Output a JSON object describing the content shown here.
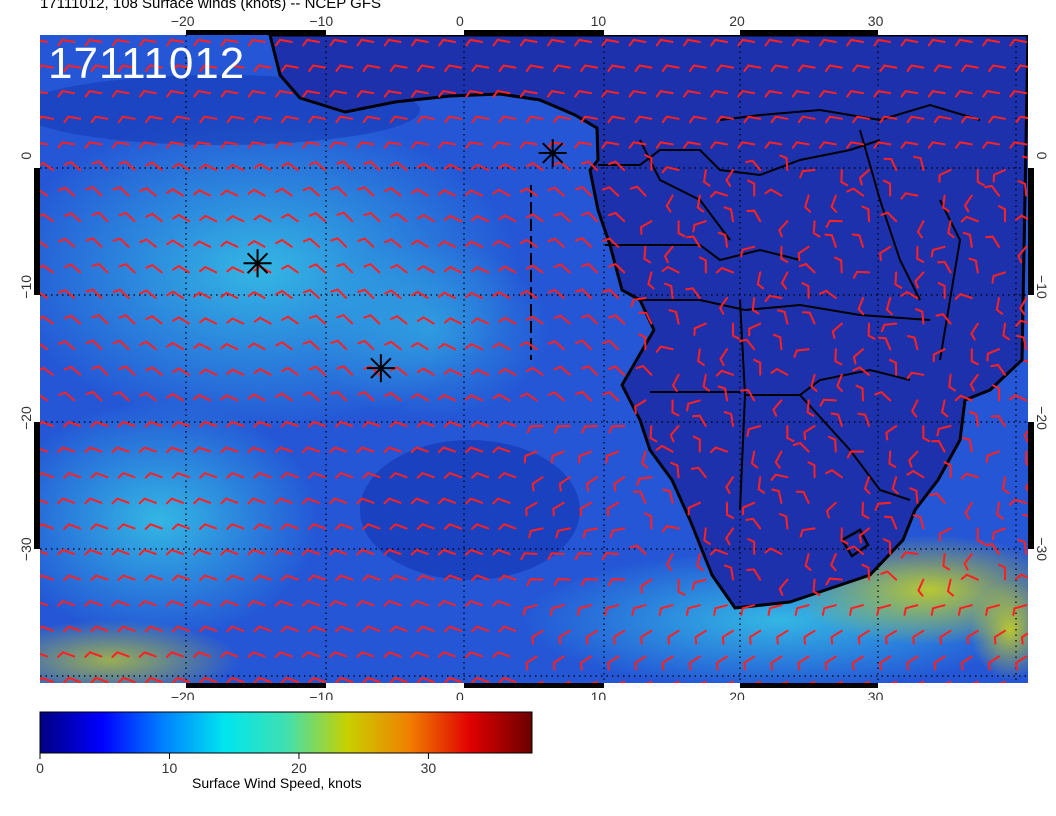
{
  "title": "17111012, 108 Surface winds (knots) -- NCEP GFS",
  "stamp": "17111012",
  "lon_ticks": [
    {
      "value": -20,
      "label": "−20"
    },
    {
      "value": -10,
      "label": "−10"
    },
    {
      "value": 0,
      "label": "0"
    },
    {
      "value": 10,
      "label": "10"
    },
    {
      "value": 20,
      "label": "20"
    },
    {
      "value": 30,
      "label": "30"
    }
  ],
  "lat_ticks": [
    {
      "value": 0,
      "label": "0"
    },
    {
      "value": -10,
      "label": "−10"
    },
    {
      "value": -20,
      "label": "−20"
    },
    {
      "value": -30,
      "label": "−30"
    }
  ],
  "extent": {
    "lon_min": -30.3,
    "lon_max": 41.0,
    "lat_min": -40.2,
    "lat_max": 9.2
  },
  "markers": [
    {
      "name": "marker-1",
      "lon": 6.7,
      "lat": 0.2
    },
    {
      "name": "marker-2",
      "lon": -14.6,
      "lat": -8.2
    },
    {
      "name": "marker-3",
      "lon": -5.7,
      "lat": -16.2
    }
  ],
  "colorbar": {
    "min": 0,
    "max": 38,
    "ticks": [
      {
        "value": 0,
        "label": "0"
      },
      {
        "value": 10,
        "label": "10"
      },
      {
        "value": 20,
        "label": "20"
      },
      {
        "value": 30,
        "label": "30"
      }
    ],
    "title": "Surface Wind Speed, knots",
    "stops": [
      "#00007f",
      "#0000ff",
      "#0080ff",
      "#00e5ee",
      "#40e0b0",
      "#c8d000",
      "#f08000",
      "#e00000",
      "#6a0000"
    ]
  },
  "colors": {
    "ocean_base": "#1f4fd8",
    "land": "#1c2fae",
    "coast": "#000000",
    "barb": "#ff2020",
    "grid": "#000000"
  }
}
